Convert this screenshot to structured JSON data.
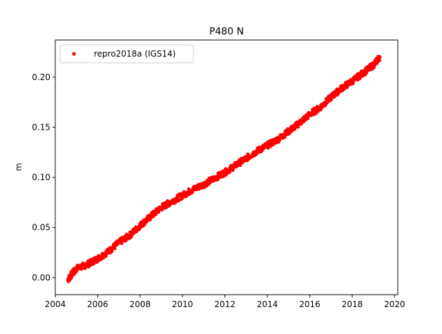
{
  "chart_data": {
    "type": "scatter",
    "title": "P480 N",
    "xlabel": "",
    "ylabel": "m",
    "xlim": [
      2004.0,
      2020.15
    ],
    "ylim": [
      -0.017,
      0.237
    ],
    "xticks": [
      2004,
      2006,
      2008,
      2010,
      2012,
      2014,
      2016,
      2018,
      2020
    ],
    "xtick_labels": [
      "2004",
      "2006",
      "2008",
      "2010",
      "2012",
      "2014",
      "2016",
      "2018",
      "2020"
    ],
    "yticks": [
      0.0,
      0.05,
      0.1,
      0.15,
      0.2
    ],
    "ytick_labels": [
      "0.00",
      "0.05",
      "0.10",
      "0.15",
      "0.20"
    ],
    "grid": false,
    "legend_position": "top-left",
    "series": [
      {
        "name": "repro2018a (IGS14)",
        "color": "#ff0000",
        "marker": "circle",
        "x": [
          2004.6,
          2004.8,
          2005.0,
          2005.5,
          2006.0,
          2006.5,
          2007.0,
          2007.5,
          2008.0,
          2008.5,
          2009.0,
          2009.5,
          2010.0,
          2010.5,
          2011.0,
          2011.5,
          2012.0,
          2012.5,
          2013.0,
          2013.5,
          2014.0,
          2014.5,
          2015.0,
          2015.5,
          2016.0,
          2016.5,
          2017.0,
          2017.5,
          2018.0,
          2018.5,
          2019.0,
          2019.3
        ],
        "y": [
          -0.002,
          0.004,
          0.009,
          0.013,
          0.019,
          0.026,
          0.035,
          0.042,
          0.052,
          0.061,
          0.07,
          0.076,
          0.082,
          0.088,
          0.093,
          0.099,
          0.105,
          0.112,
          0.119,
          0.126,
          0.132,
          0.138,
          0.146,
          0.154,
          0.163,
          0.17,
          0.18,
          0.189,
          0.196,
          0.204,
          0.212,
          0.22
        ]
      }
    ]
  }
}
